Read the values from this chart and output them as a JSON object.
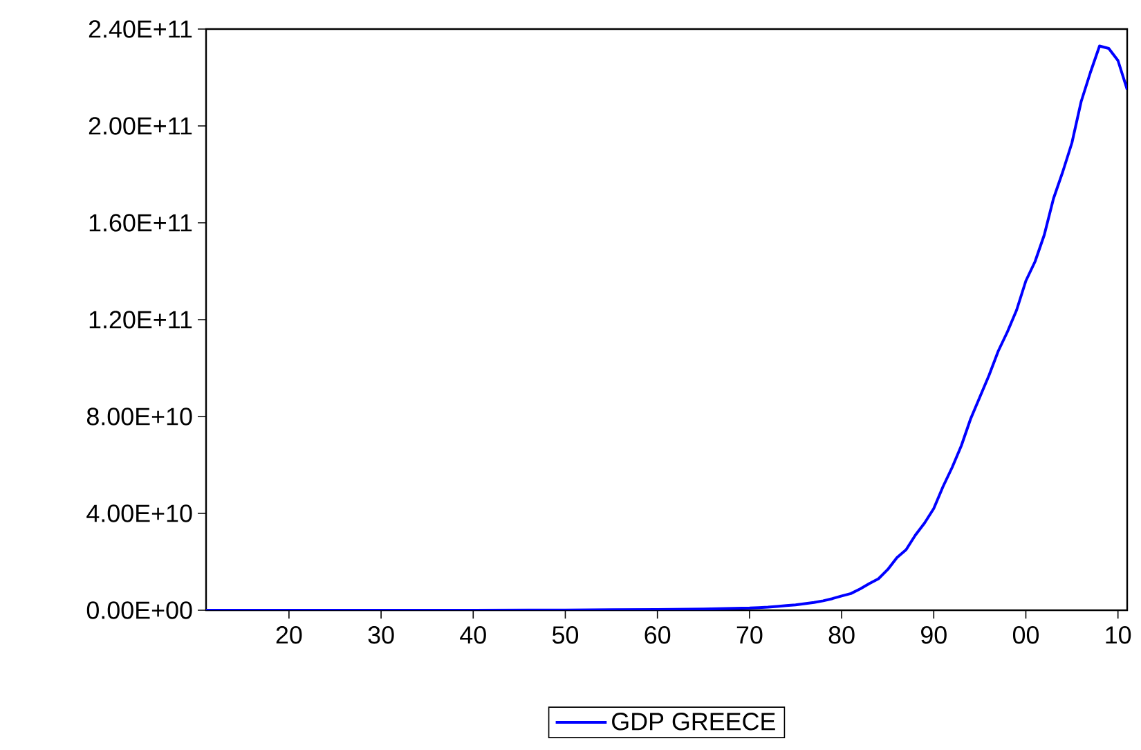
{
  "chart_data": {
    "type": "line",
    "legend": "bottom",
    "marker": "none",
    "line_style": "solid",
    "grid": false,
    "x": [
      1911,
      1920,
      1930,
      1940,
      1950,
      1955,
      1960,
      1965,
      1970,
      1971,
      1972,
      1973,
      1974,
      1975,
      1976,
      1977,
      1978,
      1979,
      1980,
      1981,
      1982,
      1983,
      1984,
      1985,
      1986,
      1987,
      1988,
      1989,
      1990,
      1991,
      1992,
      1993,
      1994,
      1995,
      1996,
      1997,
      1998,
      1999,
      2000,
      2001,
      2002,
      2003,
      2004,
      2005,
      2006,
      2007,
      2008,
      2009,
      2010,
      2011
    ],
    "series": [
      {
        "name": "GDP GREECE",
        "color": "#0000ff",
        "values": [
          0,
          0,
          0,
          0,
          100000000,
          200000000,
          300000000,
          500000000,
          900000000,
          1100000000,
          1300000000,
          1600000000,
          1900000000,
          2200000000,
          2700000000,
          3200000000,
          3900000000,
          4800000000,
          5900000000,
          6900000000,
          8800000000,
          11000000000,
          13000000000,
          16800000000,
          21700000000,
          25000000000,
          31000000000,
          36000000000,
          42000000000,
          51000000000,
          59000000000,
          68000000000,
          79000000000,
          88000000000,
          97000000000,
          107000000000,
          115000000000,
          124000000000,
          136000000000,
          144000000000,
          155000000000,
          170000000000,
          181000000000,
          193000000000,
          210000000000,
          222000000000,
          233000000000,
          232000000000,
          227000000000,
          215000000000
        ]
      }
    ],
    "xlim": [
      1911,
      2011
    ],
    "xticks": [
      {
        "value": 1920,
        "label": "20"
      },
      {
        "value": 1930,
        "label": "30"
      },
      {
        "value": 1940,
        "label": "40"
      },
      {
        "value": 1950,
        "label": "50"
      },
      {
        "value": 1960,
        "label": "60"
      },
      {
        "value": 1970,
        "label": "70"
      },
      {
        "value": 1980,
        "label": "80"
      },
      {
        "value": 1990,
        "label": "90"
      },
      {
        "value": 2000,
        "label": "00"
      },
      {
        "value": 2010,
        "label": "10"
      }
    ],
    "ylim": [
      0,
      240000000000
    ],
    "yticks": [
      {
        "value": 0,
        "label": "0.00E+00"
      },
      {
        "value": 40000000000,
        "label": "4.00E+10"
      },
      {
        "value": 80000000000,
        "label": "8.00E+10"
      },
      {
        "value": 120000000000,
        "label": "1.20E+11"
      },
      {
        "value": 160000000000,
        "label": "1.60E+11"
      },
      {
        "value": 200000000000,
        "label": "2.00E+11"
      },
      {
        "value": 240000000000,
        "label": "2.40E+11"
      }
    ]
  }
}
